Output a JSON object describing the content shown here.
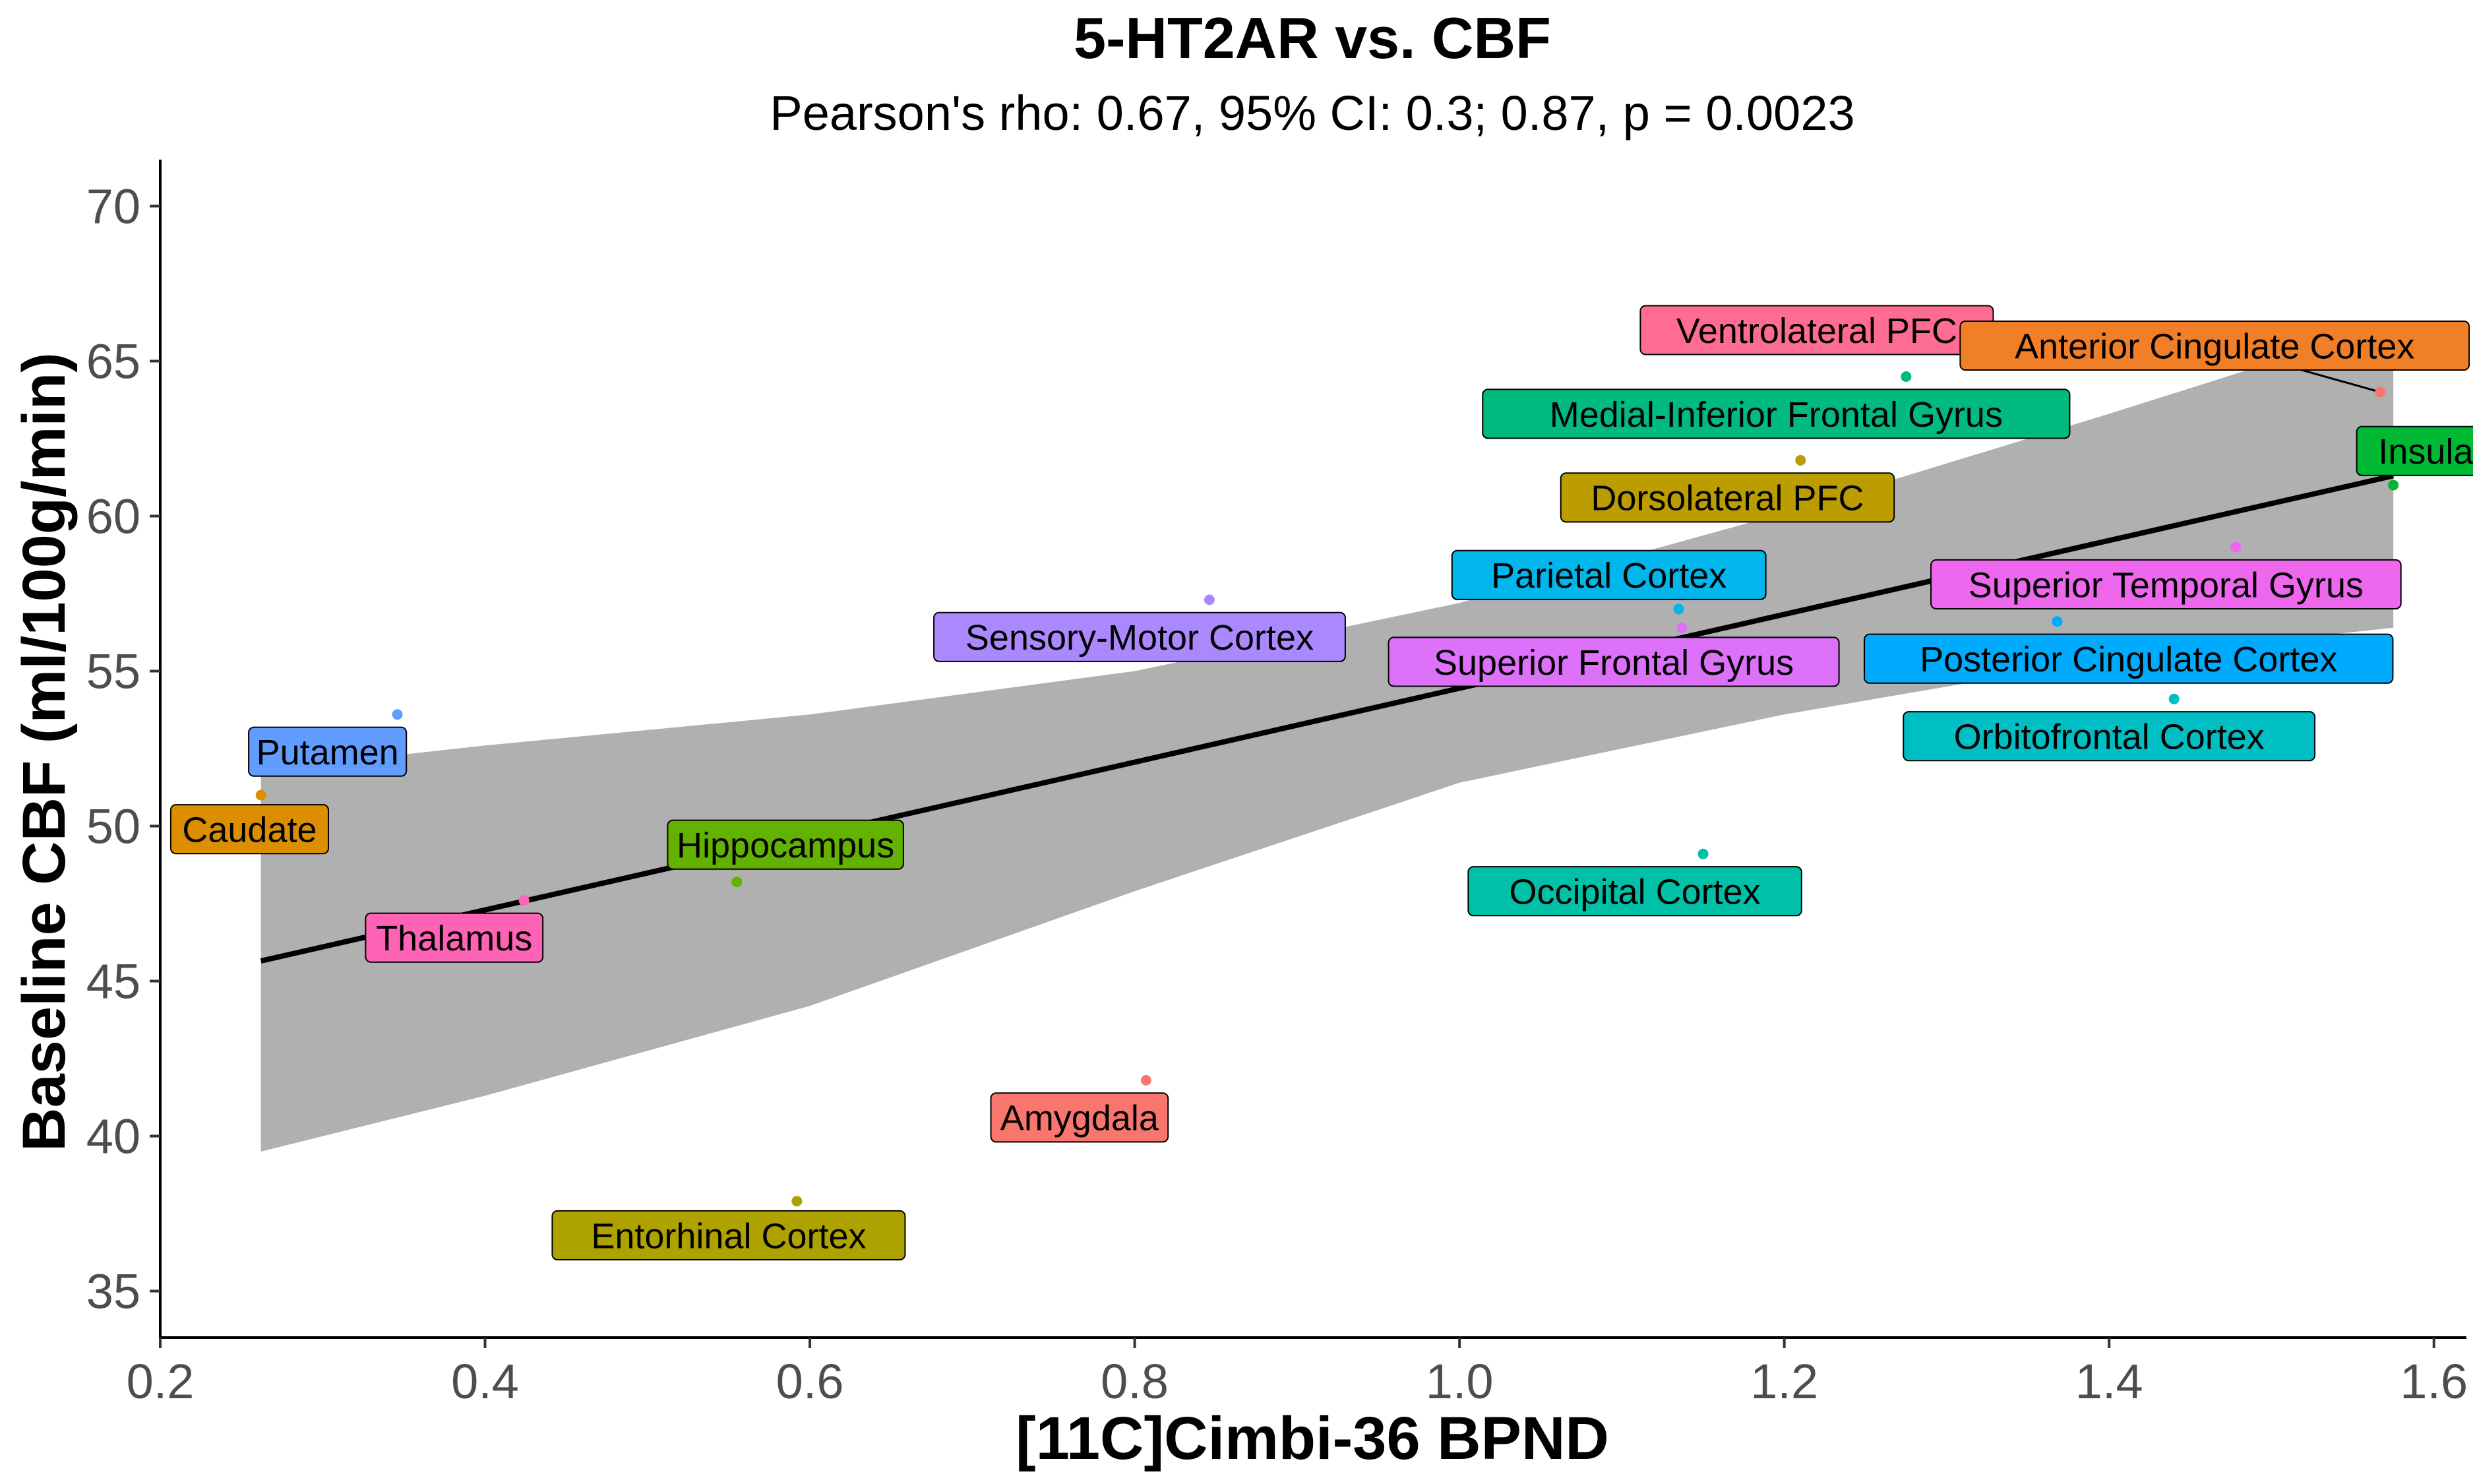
{
  "chart_data": {
    "type": "scatter",
    "title": "5-HT2AR vs. CBF",
    "subtitle": "Pearson's rho: 0.67, 95% CI: 0.3; 0.87, p = 0.0023",
    "xlabel": "[11C]Cimbi-36 BPND",
    "ylabel": "Baseline CBF (ml/100g/min)",
    "xlim": [
      0.2,
      1.62
    ],
    "ylim": [
      33.5,
      71.5
    ],
    "x_ticks": [
      "0.2",
      "0.4",
      "0.6",
      "0.8",
      "1.0",
      "1.2",
      "1.4",
      "1.6"
    ],
    "y_ticks": [
      "35",
      "40",
      "45",
      "50",
      "55",
      "60",
      "65",
      "70"
    ],
    "grid": false,
    "legend": "none",
    "points": [
      {
        "label": "Ventrolateral PFC",
        "x": 1.345,
        "y": 65.0,
        "color": "#FF6C91",
        "label_x": 1.22,
        "label_y": 66.0,
        "leader": true
      },
      {
        "label": "Anterior Cingulate Cortex",
        "x": 1.567,
        "y": 64.0,
        "color": "#F8766D",
        "fill": "#F07F27",
        "label_x": 1.465,
        "label_y": 65.5,
        "leader": true
      },
      {
        "label": "Medial-Inferior Frontal Gyrus",
        "x": 1.275,
        "y": 64.5,
        "color": "#00BA80",
        "label_x": 1.195,
        "label_y": 63.3
      },
      {
        "label": "Insula",
        "x": 1.575,
        "y": 61.0,
        "color": "#00B833",
        "label_x": 1.595,
        "label_y": 62.1
      },
      {
        "label": "Dorsolateral PFC",
        "x": 1.21,
        "y": 61.8,
        "color": "#BB9D00",
        "label_x": 1.165,
        "label_y": 60.6
      },
      {
        "label": "Parietal Cortex",
        "x": 1.135,
        "y": 57.0,
        "color": "#00B6EB",
        "label_x": 1.092,
        "label_y": 58.1
      },
      {
        "label": "Superior Temporal Gyrus",
        "x": 1.478,
        "y": 59.0,
        "color": "#ED68ED",
        "label_x": 1.435,
        "label_y": 57.8
      },
      {
        "label": "Sensory-Motor Cortex",
        "x": 0.846,
        "y": 57.3,
        "color": "#AC88FF",
        "label_x": 0.803,
        "label_y": 56.1
      },
      {
        "label": "Superior Frontal Gyrus",
        "x": 1.137,
        "y": 56.4,
        "color": "#DD71FA",
        "label_x": 1.095,
        "label_y": 55.3
      },
      {
        "label": "Posterior Cingulate Cortex",
        "x": 1.368,
        "y": 56.6,
        "color": "#00ABFD",
        "label_x": 1.412,
        "label_y": 55.4
      },
      {
        "label": "Orbitofrontal Cortex",
        "x": 1.44,
        "y": 54.1,
        "color": "#00BFC4",
        "label_x": 1.4,
        "label_y": 52.9
      },
      {
        "label": "Putamen",
        "x": 0.346,
        "y": 53.6,
        "color": "#619CFF",
        "label_x": 0.303,
        "label_y": 52.4
      },
      {
        "label": "Caudate",
        "x": 0.262,
        "y": 51.0,
        "color": "#DB8E00",
        "label_x": 0.255,
        "label_y": 49.9
      },
      {
        "label": "Hippocampus",
        "x": 0.555,
        "y": 48.2,
        "color": "#64B200",
        "label_x": 0.585,
        "label_y": 49.4
      },
      {
        "label": "Occipital Cortex",
        "x": 1.15,
        "y": 49.1,
        "color": "#00C1A7",
        "label_x": 1.108,
        "label_y": 47.9
      },
      {
        "label": "Thalamus",
        "x": 0.424,
        "y": 47.6,
        "color": "#FF63B6",
        "label_x": 0.381,
        "label_y": 46.4
      },
      {
        "label": "Amygdala",
        "x": 0.807,
        "y": 41.8,
        "color": "#F8766D",
        "label_x": 0.766,
        "label_y": 40.6
      },
      {
        "label": "Entorhinal Cortex",
        "x": 0.592,
        "y": 37.9,
        "color": "#AEA200",
        "label_x": 0.55,
        "label_y": 36.8
      }
    ],
    "regression": {
      "x": [
        0.262,
        1.575
      ],
      "y": [
        45.65,
        61.3
      ],
      "color": "#000000"
    },
    "ci_band": {
      "x": [
        0.262,
        0.4,
        0.6,
        0.8,
        1.0,
        1.2,
        1.4,
        1.575
      ],
      "upper": [
        51.8,
        52.6,
        53.6,
        55.0,
        57.2,
        60.1,
        63.3,
        66.2
      ],
      "lower": [
        39.5,
        41.3,
        44.2,
        47.9,
        51.4,
        53.6,
        55.4,
        56.4
      ],
      "color": "#B0B0B0"
    }
  }
}
